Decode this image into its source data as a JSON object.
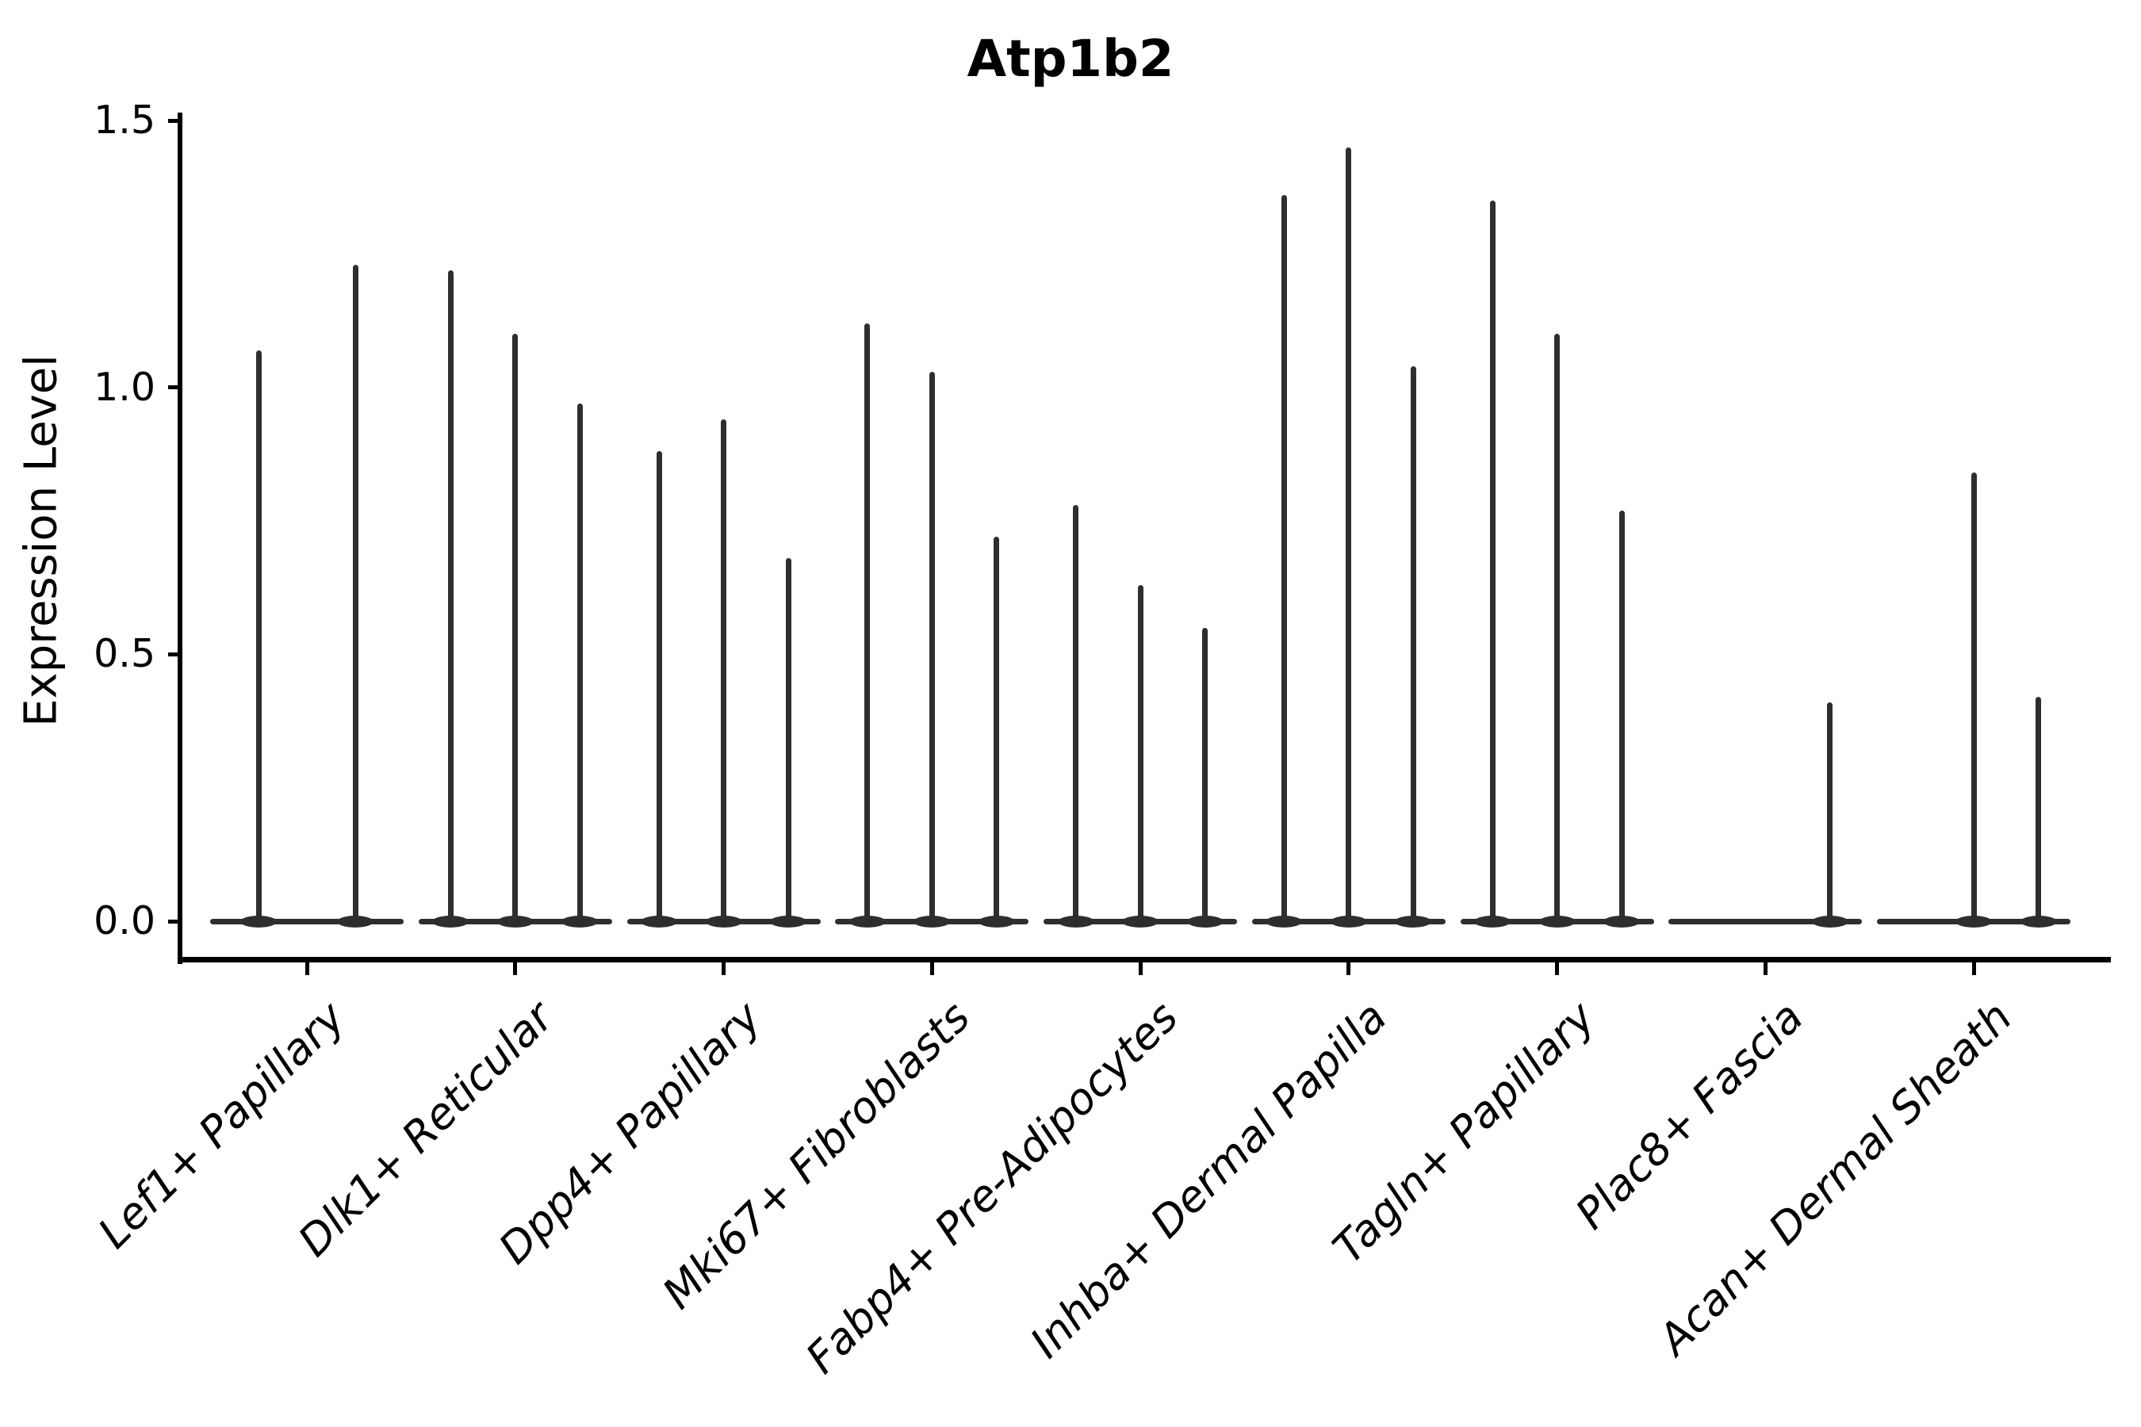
{
  "chart_data": {
    "type": "violin",
    "title": "Atp1b2",
    "xlabel": "",
    "ylabel": "Expression Level",
    "ylim": [
      0,
      1.5
    ],
    "yticks": [
      0,
      0.5,
      1,
      1.5
    ],
    "grid": false,
    "legend": false,
    "background": "#ffffff",
    "axis_color": "#000000",
    "violin_color": "#2e2e2e",
    "style_note": "Grouped violin plot; each violin is nearly flat at 0 with a thin vertical spike rising to its maximum expression value. 'maxima' lists the spike top (max expression) for each violin in the group; 0 means a flat violin with no visible spike.",
    "categories": [
      "Lef1+ Papillary",
      "Dlk1+ Reticular",
      "Dpp4+ Papillary",
      "Mki67+ Fibroblasts",
      "Fabp4+ Pre-Adipocytes",
      "Inhba+ Dermal Papilla",
      "Tagln+ Papillary",
      "Plac8+ Fascia",
      "Acan+ Dermal Sheath"
    ],
    "violins": [
      {
        "category": "Lef1+ Papillary",
        "maxima": [
          1.07,
          1.23
        ]
      },
      {
        "category": "Dlk1+ Reticular",
        "maxima": [
          1.22,
          1.1,
          0.97
        ]
      },
      {
        "category": "Dpp4+ Papillary",
        "maxima": [
          0.88,
          0.94,
          0.68
        ]
      },
      {
        "category": "Mki67+ Fibroblasts",
        "maxima": [
          1.12,
          1.03,
          0.72
        ]
      },
      {
        "category": "Fabp4+ Pre-Adipocytes",
        "maxima": [
          0.78,
          0.63,
          0.55
        ]
      },
      {
        "category": "Inhba+ Dermal Papilla",
        "maxima": [
          1.36,
          1.45,
          1.04
        ]
      },
      {
        "category": "Tagln+ Papillary",
        "maxima": [
          1.35,
          1.1,
          0.77
        ]
      },
      {
        "category": "Plac8+ Fascia",
        "maxima": [
          0,
          0,
          0.41
        ]
      },
      {
        "category": "Acan+ Dermal Sheath",
        "maxima": [
          0,
          0.84,
          0.42
        ]
      }
    ]
  }
}
